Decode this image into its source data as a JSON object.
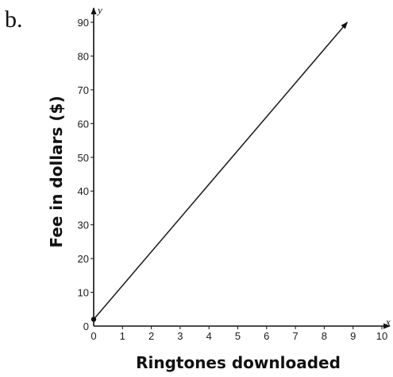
{
  "panel_label": "b.",
  "colors": {
    "ink": "#111111",
    "line": "#1a1a1a"
  },
  "chart_data": {
    "type": "line",
    "title": "",
    "xlabel": "Ringtones downloaded",
    "ylabel": "Fee in dollars ($)",
    "x_axis_letter": "x",
    "y_axis_letter": "y",
    "xlim": [
      0,
      10
    ],
    "ylim": [
      0,
      90
    ],
    "x_ticks": [
      0,
      1,
      2,
      3,
      4,
      5,
      6,
      7,
      8,
      9,
      10
    ],
    "y_ticks": [
      0,
      10,
      20,
      30,
      40,
      50,
      60,
      70,
      80,
      90
    ],
    "grid": false,
    "series": [
      {
        "x": [
          0,
          8.8
        ],
        "y": [
          2,
          90
        ],
        "start_marker": true,
        "end_arrow": true
      }
    ]
  }
}
